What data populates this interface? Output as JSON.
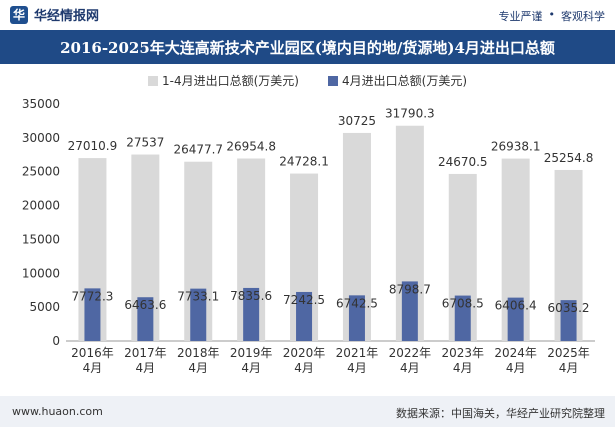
{
  "header": {
    "logo_text": "华经情报网",
    "tags": [
      "专业严谨",
      "客观科学"
    ]
  },
  "chart_title": "2016-2025年大连高新技术产业园区(境内目的地/货源地)4月进出口总额",
  "footer": {
    "url": "www.huaon.com",
    "source": "数据来源：中国海关，华经产业研究院整理"
  },
  "colors": {
    "title_bg": "#1f4a86",
    "series1": "#d9d9d9",
    "series2": "#4f67a3"
  },
  "chart_data": {
    "type": "bar",
    "categories": [
      "2016年\n4月",
      "2017年\n4月",
      "2018年\n4月",
      "2019年\n4月",
      "2020年\n4月",
      "2021年\n4月",
      "2022年\n4月",
      "2023年\n4月",
      "2024年\n4月",
      "2025年\n4月"
    ],
    "series": [
      {
        "name": "1-4月进出口总额(万美元)",
        "values": [
          27010.9,
          27537,
          26477.7,
          26954.8,
          24728.1,
          30725,
          31790.3,
          24670.5,
          26938.1,
          25254.8
        ]
      },
      {
        "name": "4月进出口总额(万美元)",
        "values": [
          7772.3,
          6463.6,
          7733.1,
          7835.6,
          7242.5,
          6742.5,
          8798.7,
          6708.5,
          6406.4,
          6035.2
        ]
      }
    ],
    "ylim": [
      0,
      35000
    ],
    "yticks": [
      0,
      5000,
      10000,
      15000,
      20000,
      25000,
      30000,
      35000
    ],
    "legend_position": "top-center",
    "grid": false
  }
}
